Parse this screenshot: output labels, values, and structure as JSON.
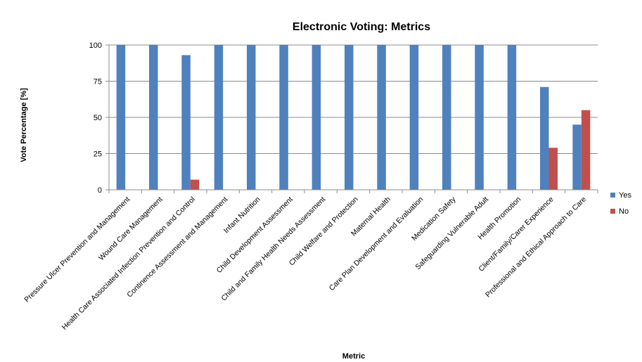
{
  "chart_data": {
    "type": "bar",
    "title": "Electronic Voting: Metrics",
    "xlabel": "Metric",
    "ylabel": "Vote Percentage [%]",
    "ylim": [
      0,
      100
    ],
    "yticks": [
      0,
      25,
      50,
      75,
      100
    ],
    "grid": true,
    "legend_position": "right",
    "categories": [
      "Pressure Ulcer Prevention and Management",
      "Wound Care Management",
      "Health Care Associated Infection Prevention and Control",
      "Continence Assessment and Management",
      "Infant Nutrition",
      "Child Development Assessment",
      "Child and Family Health Needs Assessment",
      "Child Welfare and Protection",
      "Maternal Health",
      "Care Plan Development and Evaluation",
      "Medication Safety",
      "Safeguarding Vulnerable Adult",
      "Health Promotion",
      "Client/Family/Carer Experience",
      "Professional and Ethical Approach to Care"
    ],
    "series": [
      {
        "name": "Yes",
        "color": "#4F81BD",
        "values": [
          100,
          100,
          93,
          100,
          100,
          100,
          100,
          100,
          100,
          100,
          100,
          100,
          100,
          71,
          45
        ]
      },
      {
        "name": "No",
        "color": "#C0504D",
        "values": [
          0,
          0,
          7,
          0,
          0,
          0,
          0,
          0,
          0,
          0,
          0,
          0,
          0,
          29,
          55
        ]
      }
    ]
  }
}
